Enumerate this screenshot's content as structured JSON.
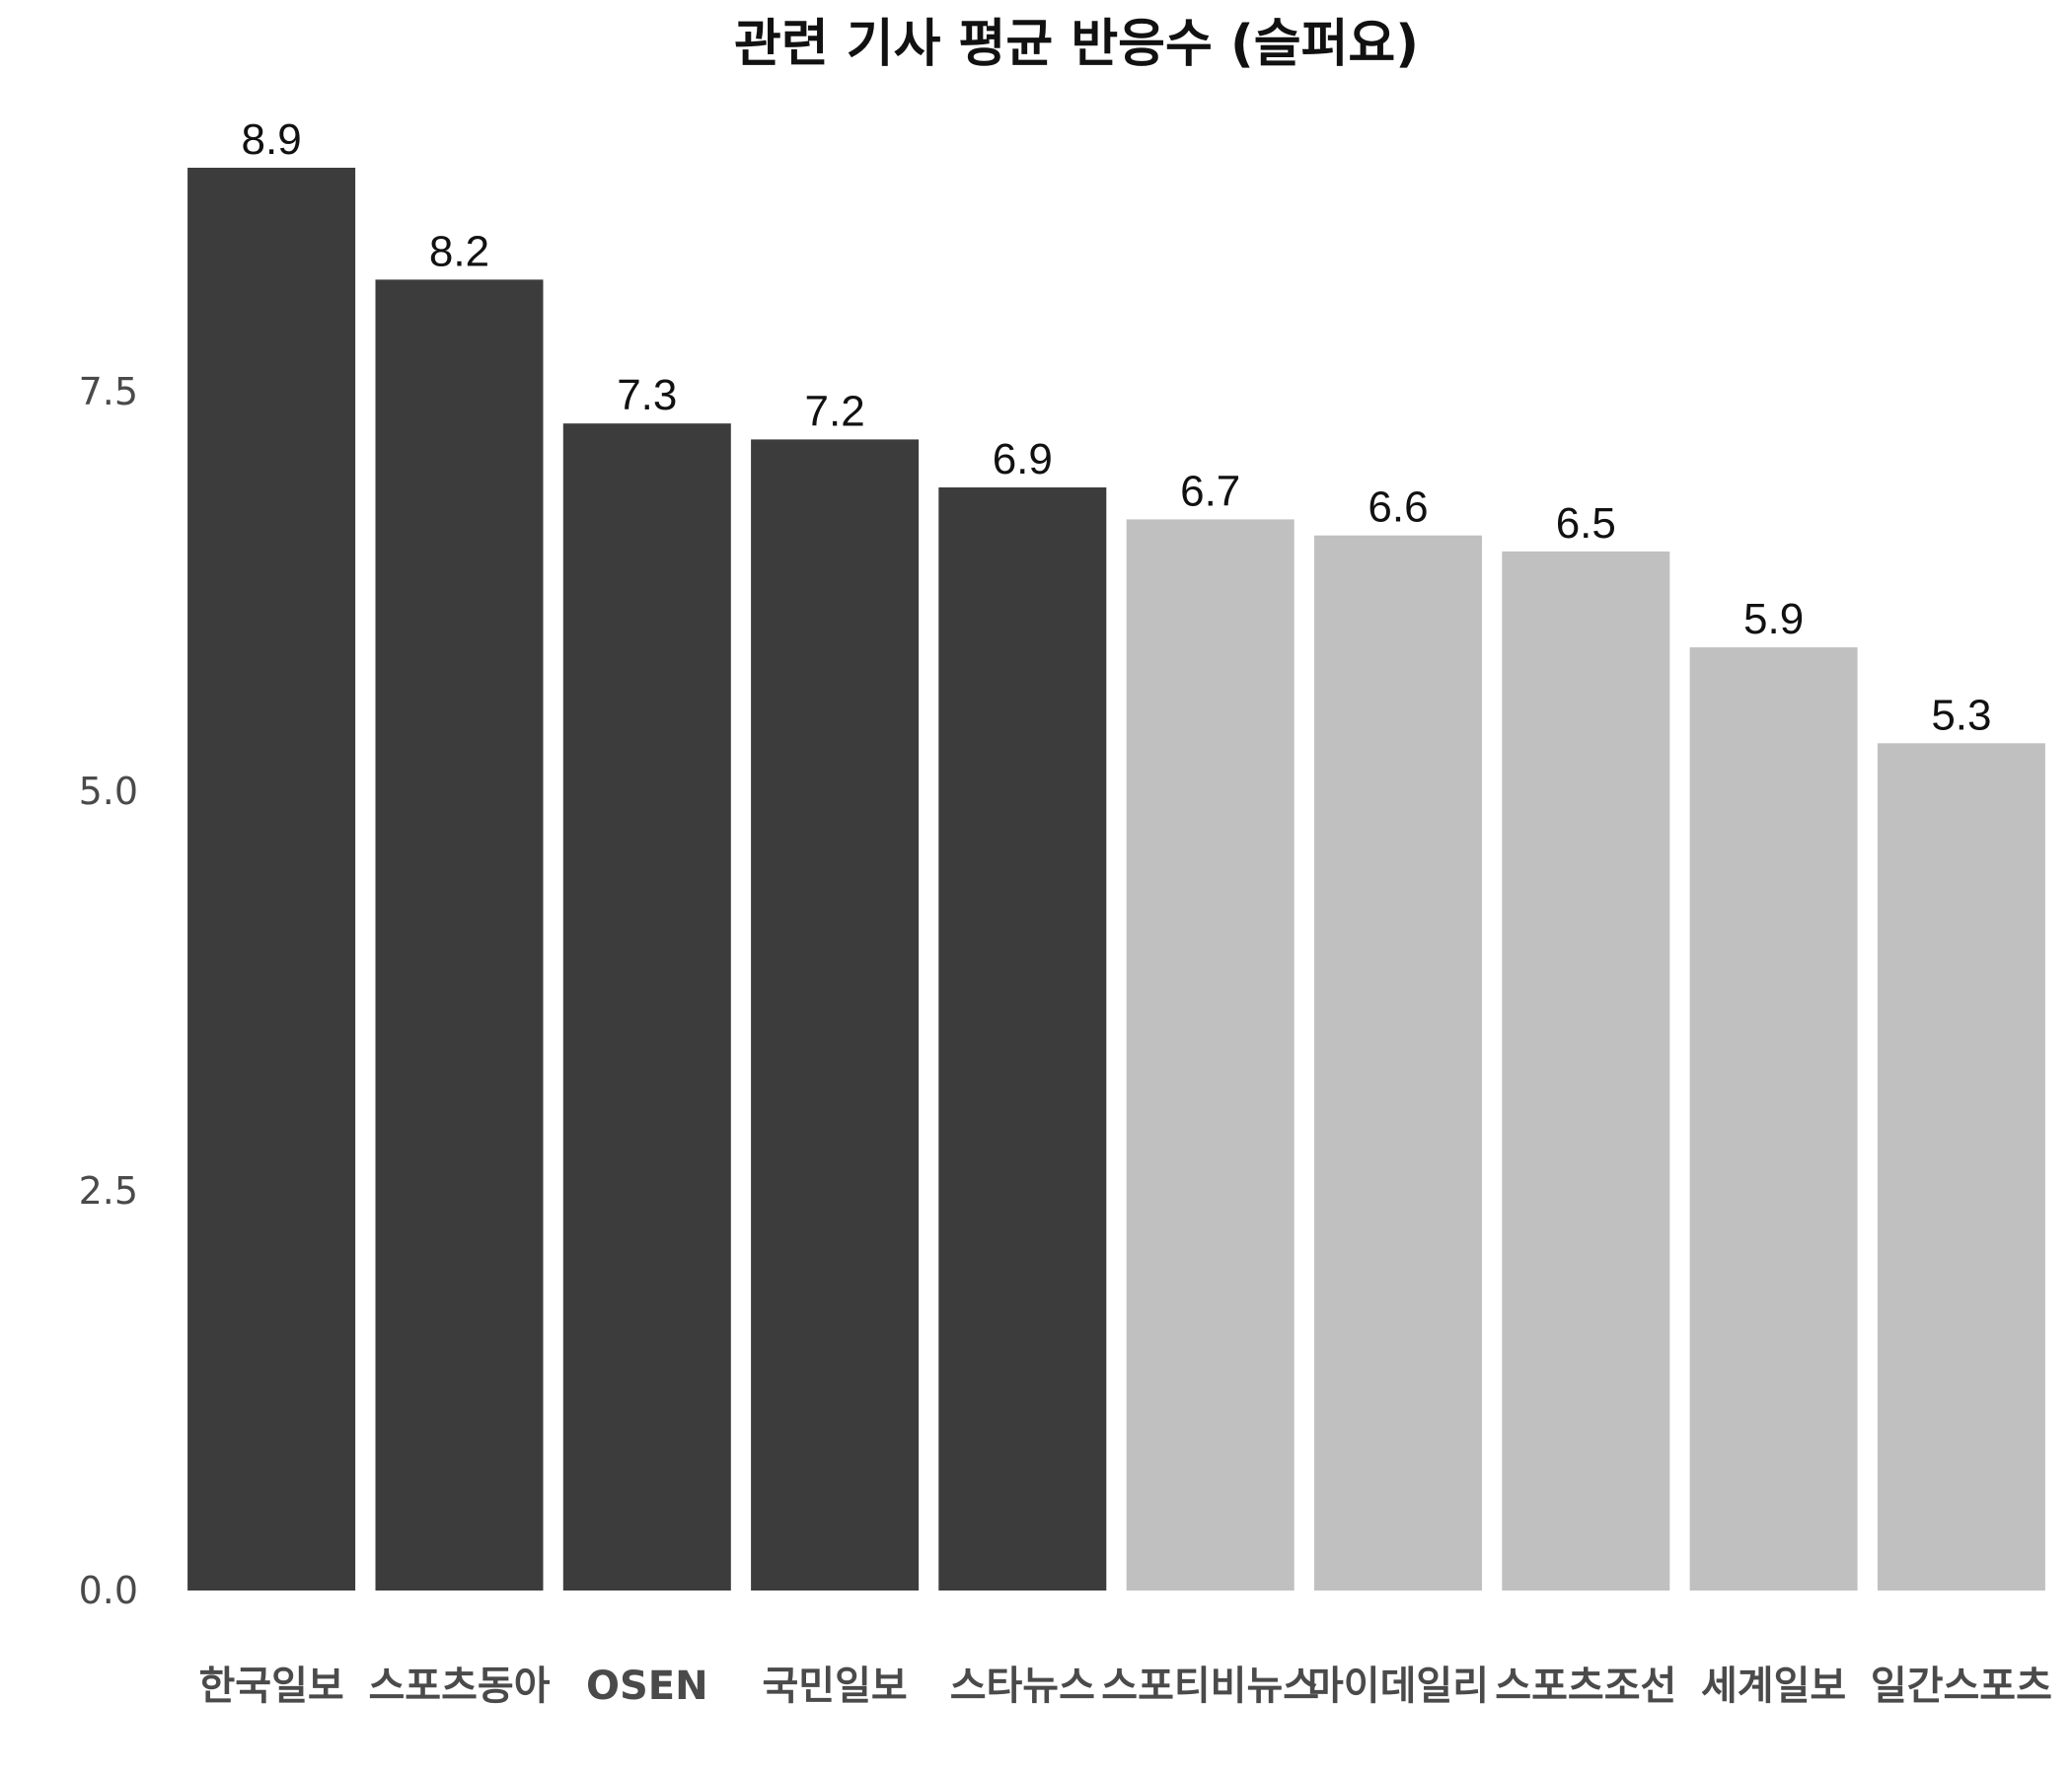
{
  "chart_data": {
    "type": "bar",
    "title": "관련 기사 평균 반응수 (슬퍼요)",
    "xlabel": "",
    "ylabel": "",
    "categories": [
      "한국일보",
      "스포츠동아",
      "OSEN",
      "국민일보",
      "스타뉴스",
      "스포티비뉴스",
      "마이데일리",
      "스포츠조선",
      "세계일보",
      "일간스포츠"
    ],
    "values": [
      8.9,
      8.2,
      7.3,
      7.2,
      6.9,
      6.7,
      6.6,
      6.5,
      5.9,
      5.3
    ],
    "data_labels": [
      "8.9",
      "8.2",
      "7.3",
      "7.2",
      "6.9",
      "6.7",
      "6.6",
      "6.5",
      "5.9",
      "5.3"
    ],
    "ylim": [
      0,
      8.9
    ],
    "yticks": [
      0,
      2.5,
      5,
      7.5
    ],
    "ytick_labels": [
      "0.0",
      "2.5",
      "5.0",
      "7.5"
    ],
    "highlight_count": 5,
    "grid": false,
    "legend": "none",
    "colors": {
      "highlight": "#3c3c3c",
      "other": "#c0c0c0",
      "background": "#ffffff"
    }
  }
}
